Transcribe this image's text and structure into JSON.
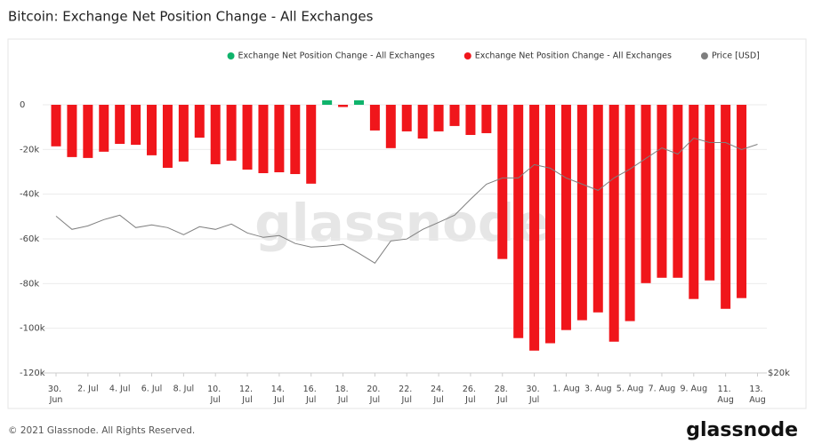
{
  "chart_data": {
    "type": "bar",
    "title": "Bitcoin: Exchange Net Position Change - All Exchanges",
    "watermark": "glassnode",
    "footer": "© 2021 Glassnode. All Rights Reserved.",
    "logo": "glassnode",
    "categories": [
      "30. Jun",
      null,
      "2. Jul",
      null,
      "4. Jul",
      null,
      "6. Jul",
      null,
      "8. Jul",
      null,
      "10. Jul",
      null,
      "12. Jul",
      null,
      "14. Jul",
      null,
      "16. Jul",
      null,
      "18. Jul",
      null,
      "20. Jul",
      null,
      "22. Jul",
      null,
      "24. Jul",
      null,
      "26. Jul",
      null,
      "28. Jul",
      null,
      "30. Jul",
      null,
      "1. Aug",
      null,
      "3. Aug",
      null,
      "5. Aug",
      null,
      "7. Aug",
      null,
      "9. Aug",
      null,
      "11. Aug",
      null,
      "13. Aug"
    ],
    "series": [
      {
        "name": "Exchange Net Position Change - All Exchanges",
        "color": "#0fb36b",
        "values": [
          null,
          null,
          null,
          null,
          null,
          null,
          null,
          null,
          null,
          null,
          null,
          null,
          null,
          null,
          null,
          null,
          null,
          2000,
          null,
          2000,
          null,
          null,
          null,
          null,
          null,
          null,
          null,
          null,
          null,
          null,
          null,
          null,
          null,
          null,
          null,
          null,
          null,
          null,
          null,
          null,
          null,
          null,
          null,
          null,
          null
        ]
      },
      {
        "name": "Exchange Net Position Change - All Exchanges",
        "color": "#f0161b",
        "values": [
          -18600,
          -23400,
          -23800,
          -21000,
          -17500,
          -17900,
          -22600,
          -28200,
          -25400,
          -14700,
          -26600,
          -25000,
          -29000,
          -30600,
          -30200,
          -31000,
          -35300,
          null,
          -1000,
          null,
          -11500,
          -19400,
          -11900,
          -15100,
          -11900,
          -9500,
          -13500,
          -12700,
          -69000,
          -104400,
          -110000,
          -106700,
          -100800,
          -96400,
          -92900,
          -106000,
          -96800,
          -79800,
          -77400,
          -77400,
          -86900,
          -78600,
          -91300,
          -86500,
          null
        ]
      },
      {
        "name": "Price [USD]",
        "color": "#7f7f7f",
        "axis": "y2",
        "values": [
          33760,
          32300,
          32680,
          33370,
          33870,
          32490,
          32780,
          32490,
          31730,
          32590,
          32300,
          32880,
          31920,
          31450,
          31640,
          30810,
          30450,
          30540,
          30720,
          29820,
          28860,
          31080,
          31270,
          32300,
          33070,
          33870,
          35720,
          37560,
          38350,
          38350,
          40090,
          39620,
          38350,
          37560,
          36790,
          38350,
          39500,
          40930,
          42410,
          41540,
          43810,
          43170,
          43170,
          42150,
          42910
        ]
      }
    ],
    "ylim": [
      -120000,
      18000
    ],
    "yticks": [
      {
        "value": 0,
        "label": "0"
      },
      {
        "value": -20000,
        "label": "-20k"
      },
      {
        "value": -40000,
        "label": "-40k"
      },
      {
        "value": -60000,
        "label": "-60k"
      },
      {
        "value": -80000,
        "label": "-80k"
      },
      {
        "value": -100000,
        "label": "-100k"
      },
      {
        "value": -120000,
        "label": "-120k"
      }
    ],
    "y2lim": [
      20000,
      56000
    ],
    "y2ticks": [
      {
        "value": 20000,
        "label": "$20k"
      }
    ],
    "y2log": true,
    "grid": true,
    "legend": "top-right"
  }
}
